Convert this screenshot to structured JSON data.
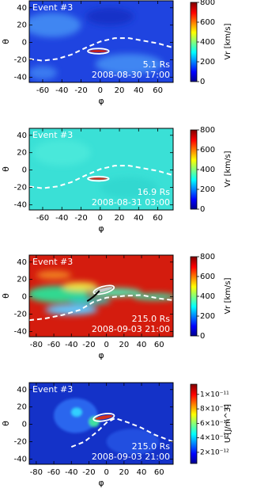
{
  "chart_data": [
    {
      "type": "heatmap",
      "title": "Event #3",
      "annotations": [
        "5.1 Rs",
        "2008-08-30 17:00"
      ],
      "xlabel": "φ",
      "ylabel": "θ",
      "xlim": [
        -74,
        76
      ],
      "xticks": [
        -60,
        -40,
        -20,
        0,
        20,
        40,
        60
      ],
      "ylim": [
        -46,
        48
      ],
      "yticks": [
        -40,
        -20,
        0,
        20,
        40
      ],
      "colorbar": {
        "label": "Vr [km/s]",
        "lim": [
          0,
          800
        ],
        "ticks": [
          0,
          200,
          400,
          600,
          800
        ]
      }
    },
    {
      "type": "heatmap",
      "title": "Event #3",
      "annotations": [
        "16.9 Rs",
        "2008-08-31 03:00"
      ],
      "xlabel": "φ",
      "ylabel": "θ",
      "xlim": [
        -74,
        76
      ],
      "xticks": [
        -60,
        -40,
        -20,
        0,
        20,
        40,
        60
      ],
      "ylim": [
        -46,
        48
      ],
      "yticks": [
        -40,
        -20,
        0,
        20,
        40
      ],
      "colorbar": {
        "label": "Vr [km/s]",
        "lim": [
          0,
          800
        ],
        "ticks": [
          0,
          200,
          400,
          600,
          800
        ]
      }
    },
    {
      "type": "heatmap",
      "title": "Event #3",
      "annotations": [
        "215.0 Rs",
        "2008-09-03 21:00"
      ],
      "xlabel": "φ",
      "ylabel": "θ",
      "xlim": [
        -88,
        76
      ],
      "xticks": [
        -80,
        -60,
        -40,
        -20,
        0,
        20,
        40,
        60
      ],
      "ylim": [
        -46,
        48
      ],
      "yticks": [
        -40,
        -20,
        0,
        20,
        40
      ],
      "colorbar": {
        "label": "Vr [km/s]",
        "lim": [
          0,
          800
        ],
        "ticks": [
          0,
          200,
          400,
          600,
          800
        ]
      }
    },
    {
      "type": "heatmap",
      "title": "Event #3",
      "annotations": [
        "215.0 Rs",
        "2008-09-03 21:00"
      ],
      "xlabel": "φ",
      "ylabel": "θ",
      "xlim": [
        -88,
        76
      ],
      "xticks": [
        -80,
        -60,
        -40,
        -20,
        0,
        20,
        40,
        60
      ],
      "ylim": [
        -46,
        48
      ],
      "yticks": [
        -40,
        -20,
        0,
        20,
        40
      ],
      "colorbar": {
        "label": "U [J/m^3]",
        "lim": [
          4.6e-13,
          1.14e-11
        ],
        "ticks": [
          {
            "value": 2e-12,
            "label": "2×10⁻¹²"
          },
          {
            "value": 4e-12,
            "label": "4×10⁻¹²"
          },
          {
            "value": 6e-12,
            "label": "6×10⁻¹²"
          },
          {
            "value": 8e-12,
            "label": "8×10⁻¹²"
          },
          {
            "value": 1e-11,
            "label": "1×10⁻¹¹"
          }
        ]
      }
    }
  ]
}
